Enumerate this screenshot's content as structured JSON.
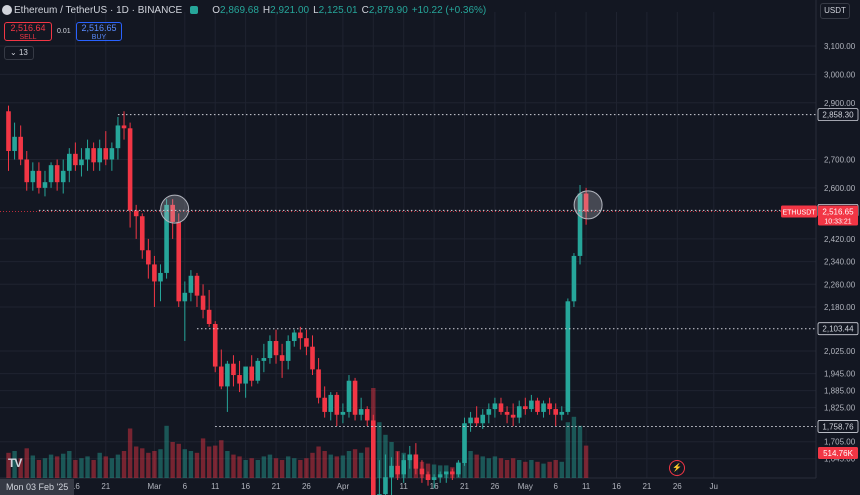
{
  "header": {
    "symbol": "Ethereum / TetherUS · 1D · BINANCE",
    "o_label": "O",
    "o_value": "2,869.68",
    "h_label": "H",
    "h_value": "2,921.00",
    "l_label": "L",
    "l_value": "2,125.01",
    "c_label": "C",
    "c_value": "2,879.90",
    "change": "+10.22 (+0.36%)"
  },
  "trade": {
    "sell_price": "2,516.64",
    "sell_label": "SELL",
    "spread": "0.01",
    "buy_price": "2,516.65",
    "buy_label": "BUY"
  },
  "indicator_count": "13",
  "currency": "USDT",
  "date_cursor": "Mon 03 Feb '25",
  "colors": {
    "up": "#26a69a",
    "down": "#f23645",
    "bg": "#131722",
    "grid": "#1f2330"
  },
  "chart_data": {
    "type": "candlestick",
    "symbol": "ETHUSDT",
    "interval": "1D",
    "y_ticks": [
      "3,100.00",
      "3,000.00",
      "2,900.00",
      "2,700.00",
      "2,600.00",
      "2,420.00",
      "2,340.00",
      "2,260.00",
      "2,180.00",
      "2,025.00",
      "1,945.00",
      "1,885.00",
      "1,825.00",
      "1,705.00",
      "1,645.00"
    ],
    "x_ticks": [
      {
        "label": "16",
        "index": 11
      },
      {
        "label": "21",
        "index": 16
      },
      {
        "label": "Mar",
        "index": 24
      },
      {
        "label": "6",
        "index": 29
      },
      {
        "label": "11",
        "index": 34
      },
      {
        "label": "16",
        "index": 39
      },
      {
        "label": "21",
        "index": 44
      },
      {
        "label": "26",
        "index": 49
      },
      {
        "label": "Apr",
        "index": 55
      },
      {
        "label": "6",
        "index": 60
      },
      {
        "label": "11",
        "index": 65
      },
      {
        "label": "16",
        "index": 70
      },
      {
        "label": "21",
        "index": 75
      },
      {
        "label": "26",
        "index": 80
      },
      {
        "label": "May",
        "index": 85
      },
      {
        "label": "6",
        "index": 90
      },
      {
        "label": "11",
        "index": 95
      },
      {
        "label": "16",
        "index": 100
      },
      {
        "label": "21",
        "index": 105
      },
      {
        "label": "26",
        "index": 110
      },
      {
        "label": "Ju",
        "index": 116
      }
    ],
    "levels": [
      {
        "value": 2858.3,
        "label": "2,858.30",
        "from_index": 18
      },
      {
        "value": 2520.61,
        "label": "2,520.61",
        "from_index": 5
      },
      {
        "value": 2103.44,
        "label": "2,103.44",
        "from_index": 31
      },
      {
        "value": 1758.76,
        "label": "1,758.76",
        "from_index": 34
      }
    ],
    "current_price": {
      "symbol": "ETHUSDT",
      "value": 2516.65,
      "label": "2,516.65",
      "countdown": "10:33:21"
    },
    "volume_label": "514.76K",
    "highlight_circles": [
      {
        "index": 27,
        "value": 2525
      },
      {
        "index": 95,
        "value": 2540
      }
    ],
    "candles": [
      [
        2870,
        2890,
        2660,
        2730
      ],
      [
        2730,
        2830,
        2700,
        2780
      ],
      [
        2780,
        2820,
        2680,
        2700
      ],
      [
        2700,
        2730,
        2590,
        2620
      ],
      [
        2620,
        2690,
        2590,
        2660
      ],
      [
        2660,
        2690,
        2580,
        2600
      ],
      [
        2600,
        2660,
        2570,
        2620
      ],
      [
        2620,
        2690,
        2600,
        2680
      ],
      [
        2680,
        2700,
        2590,
        2620
      ],
      [
        2620,
        2700,
        2580,
        2660
      ],
      [
        2660,
        2740,
        2620,
        2720
      ],
      [
        2720,
        2760,
        2660,
        2680
      ],
      [
        2680,
        2740,
        2640,
        2700
      ],
      [
        2700,
        2770,
        2660,
        2740
      ],
      [
        2740,
        2760,
        2660,
        2690
      ],
      [
        2690,
        2770,
        2660,
        2740
      ],
      [
        2740,
        2800,
        2680,
        2700
      ],
      [
        2700,
        2760,
        2660,
        2740
      ],
      [
        2740,
        2850,
        2700,
        2820
      ],
      [
        2820,
        2870,
        2770,
        2810
      ],
      [
        2810,
        2830,
        2460,
        2520
      ],
      [
        2520,
        2540,
        2420,
        2500
      ],
      [
        2500,
        2510,
        2350,
        2380
      ],
      [
        2380,
        2420,
        2280,
        2330
      ],
      [
        2330,
        2360,
        2180,
        2270
      ],
      [
        2270,
        2330,
        2200,
        2300
      ],
      [
        2300,
        2560,
        2280,
        2540
      ],
      [
        2540,
        2560,
        2420,
        2480
      ],
      [
        2480,
        2510,
        2180,
        2200
      ],
      [
        2200,
        2270,
        2060,
        2230
      ],
      [
        2230,
        2310,
        2200,
        2290
      ],
      [
        2290,
        2300,
        2180,
        2220
      ],
      [
        2220,
        2260,
        2140,
        2170
      ],
      [
        2170,
        2240,
        2110,
        2120
      ],
      [
        2120,
        2130,
        1950,
        1970
      ],
      [
        1970,
        2030,
        1890,
        1900
      ],
      [
        1900,
        1990,
        1810,
        1980
      ],
      [
        1980,
        2010,
        1900,
        1940
      ],
      [
        1940,
        1990,
        1880,
        1910
      ],
      [
        1910,
        1960,
        1860,
        1970
      ],
      [
        1970,
        2010,
        1900,
        1920
      ],
      [
        1920,
        2000,
        1910,
        1990
      ],
      [
        1990,
        2050,
        1950,
        2000
      ],
      [
        2000,
        2080,
        1980,
        2060
      ],
      [
        2060,
        2100,
        1980,
        2010
      ],
      [
        2010,
        2050,
        1930,
        1990
      ],
      [
        1990,
        2080,
        1960,
        2060
      ],
      [
        2060,
        2100,
        2040,
        2090
      ],
      [
        2090,
        2110,
        2030,
        2070
      ],
      [
        2070,
        2100,
        2010,
        2040
      ],
      [
        2040,
        2080,
        1940,
        1960
      ],
      [
        1960,
        2000,
        1840,
        1860
      ],
      [
        1860,
        1900,
        1790,
        1810
      ],
      [
        1810,
        1880,
        1780,
        1870
      ],
      [
        1870,
        1880,
        1760,
        1800
      ],
      [
        1800,
        1840,
        1770,
        1810
      ],
      [
        1810,
        1940,
        1790,
        1920
      ],
      [
        1920,
        1930,
        1780,
        1800
      ],
      [
        1800,
        1860,
        1780,
        1820
      ],
      [
        1820,
        1830,
        1760,
        1780
      ],
      [
        1780,
        1800,
        1390,
        1480
      ],
      [
        1480,
        1640,
        1390,
        1520
      ],
      [
        1520,
        1660,
        1470,
        1580
      ],
      [
        1580,
        1650,
        1510,
        1620
      ],
      [
        1620,
        1670,
        1570,
        1590
      ],
      [
        1590,
        1660,
        1560,
        1640
      ],
      [
        1640,
        1690,
        1610,
        1660
      ],
      [
        1660,
        1700,
        1590,
        1610
      ],
      [
        1610,
        1640,
        1560,
        1590
      ],
      [
        1590,
        1600,
        1550,
        1570
      ],
      [
        1570,
        1590,
        1540,
        1580
      ],
      [
        1580,
        1600,
        1560,
        1590
      ],
      [
        1590,
        1600,
        1560,
        1600
      ],
      [
        1600,
        1610,
        1570,
        1590
      ],
      [
        1590,
        1640,
        1580,
        1630
      ],
      [
        1630,
        1790,
        1620,
        1770
      ],
      [
        1770,
        1810,
        1740,
        1790
      ],
      [
        1790,
        1830,
        1760,
        1770
      ],
      [
        1770,
        1820,
        1750,
        1800
      ],
      [
        1800,
        1840,
        1770,
        1820
      ],
      [
        1820,
        1860,
        1790,
        1840
      ],
      [
        1840,
        1860,
        1800,
        1810
      ],
      [
        1810,
        1830,
        1770,
        1800
      ],
      [
        1800,
        1840,
        1760,
        1790
      ],
      [
        1790,
        1850,
        1770,
        1830
      ],
      [
        1830,
        1860,
        1800,
        1820
      ],
      [
        1820,
        1870,
        1810,
        1850
      ],
      [
        1850,
        1860,
        1800,
        1810
      ],
      [
        1810,
        1850,
        1790,
        1840
      ],
      [
        1840,
        1860,
        1800,
        1820
      ],
      [
        1820,
        1840,
        1760,
        1800
      ],
      [
        1800,
        1830,
        1780,
        1810
      ],
      [
        1810,
        2210,
        1800,
        2200
      ],
      [
        2200,
        2370,
        2180,
        2360
      ],
      [
        2360,
        2610,
        2330,
        2580
      ],
      [
        2580,
        2600,
        2470,
        2516.65
      ]
    ],
    "volumes": [
      0.28,
      0.3,
      0.22,
      0.33,
      0.25,
      0.2,
      0.22,
      0.26,
      0.24,
      0.27,
      0.3,
      0.2,
      0.22,
      0.24,
      0.2,
      0.28,
      0.24,
      0.22,
      0.26,
      0.3,
      0.55,
      0.35,
      0.33,
      0.28,
      0.3,
      0.32,
      0.58,
      0.4,
      0.38,
      0.32,
      0.3,
      0.28,
      0.44,
      0.35,
      0.36,
      0.42,
      0.3,
      0.26,
      0.24,
      0.2,
      0.22,
      0.2,
      0.24,
      0.26,
      0.22,
      0.2,
      0.24,
      0.22,
      0.2,
      0.22,
      0.28,
      0.35,
      0.3,
      0.26,
      0.24,
      0.25,
      0.3,
      0.32,
      0.28,
      0.34,
      1.0,
      0.62,
      0.48,
      0.4,
      0.3,
      0.28,
      0.22,
      0.2,
      0.18,
      0.16,
      0.15,
      0.14,
      0.14,
      0.12,
      0.18,
      0.54,
      0.3,
      0.26,
      0.24,
      0.22,
      0.24,
      0.22,
      0.2,
      0.22,
      0.2,
      0.18,
      0.2,
      0.18,
      0.16,
      0.18,
      0.2,
      0.18,
      0.62,
      0.68,
      0.58,
      0.36
    ]
  }
}
